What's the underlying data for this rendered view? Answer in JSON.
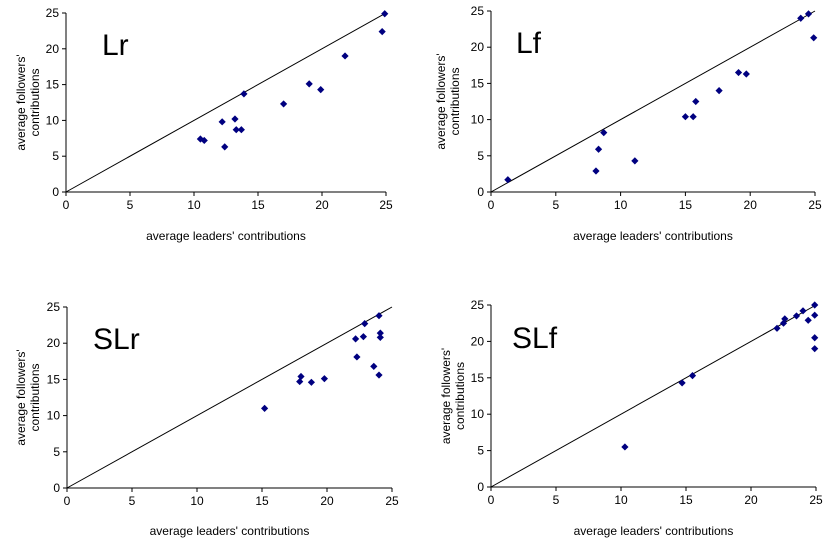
{
  "chart_data": [
    {
      "type": "scatter",
      "panel_label": "Lr",
      "xlabel": "average leaders' contributions",
      "ylabel_lines": [
        "average followers'",
        "contributions"
      ],
      "xlim": [
        0,
        25
      ],
      "ylim": [
        0,
        25
      ],
      "xticks": [
        0,
        5,
        10,
        15,
        20,
        25
      ],
      "yticks": [
        0,
        5,
        10,
        15,
        20,
        25
      ],
      "reference_line": "y = x",
      "marker_color": "#000080",
      "points": [
        {
          "x": 10.5,
          "y": 7.4
        },
        {
          "x": 10.8,
          "y": 7.2
        },
        {
          "x": 12.2,
          "y": 9.8
        },
        {
          "x": 12.4,
          "y": 6.3
        },
        {
          "x": 13.2,
          "y": 10.2
        },
        {
          "x": 13.3,
          "y": 8.7
        },
        {
          "x": 13.7,
          "y": 8.7
        },
        {
          "x": 13.9,
          "y": 13.7
        },
        {
          "x": 17.0,
          "y": 12.3
        },
        {
          "x": 19.0,
          "y": 15.1
        },
        {
          "x": 19.9,
          "y": 14.3
        },
        {
          "x": 21.8,
          "y": 19.0
        },
        {
          "x": 24.7,
          "y": 22.4
        },
        {
          "x": 24.9,
          "y": 24.9
        }
      ]
    },
    {
      "type": "scatter",
      "panel_label": "Lf",
      "xlabel": "average leaders' contributions",
      "ylabel_lines": [
        "average followers'",
        "contributions"
      ],
      "xlim": [
        0,
        25
      ],
      "ylim": [
        0,
        25
      ],
      "xticks": [
        0,
        5,
        10,
        15,
        20,
        25
      ],
      "yticks": [
        0,
        5,
        10,
        15,
        20,
        25
      ],
      "reference_line": "y = x",
      "marker_color": "#000080",
      "points": [
        {
          "x": 1.3,
          "y": 1.7
        },
        {
          "x": 8.1,
          "y": 2.9
        },
        {
          "x": 8.3,
          "y": 5.9
        },
        {
          "x": 8.7,
          "y": 8.2
        },
        {
          "x": 11.1,
          "y": 4.3
        },
        {
          "x": 15.0,
          "y": 10.4
        },
        {
          "x": 15.6,
          "y": 10.4
        },
        {
          "x": 15.8,
          "y": 12.5
        },
        {
          "x": 17.6,
          "y": 14.0
        },
        {
          "x": 19.1,
          "y": 16.5
        },
        {
          "x": 19.7,
          "y": 16.3
        },
        {
          "x": 23.9,
          "y": 24.0
        },
        {
          "x": 24.5,
          "y": 24.6
        },
        {
          "x": 24.9,
          "y": 21.3
        }
      ]
    },
    {
      "type": "scatter",
      "panel_label": "SLr",
      "xlabel": "average leaders' contributions",
      "ylabel_lines": [
        "average followers'",
        "contributions"
      ],
      "xlim": [
        0,
        25
      ],
      "ylim": [
        0,
        25
      ],
      "xticks": [
        0,
        5,
        10,
        15,
        20,
        25
      ],
      "yticks": [
        0,
        5,
        10,
        15,
        20,
        25
      ],
      "reference_line": "y = x",
      "marker_color": "#000080",
      "points": [
        {
          "x": 15.2,
          "y": 11.0
        },
        {
          "x": 17.9,
          "y": 14.7
        },
        {
          "x": 18.0,
          "y": 15.4
        },
        {
          "x": 18.8,
          "y": 14.6
        },
        {
          "x": 19.8,
          "y": 15.1
        },
        {
          "x": 22.2,
          "y": 20.6
        },
        {
          "x": 22.3,
          "y": 18.1
        },
        {
          "x": 22.8,
          "y": 20.9
        },
        {
          "x": 22.9,
          "y": 22.7
        },
        {
          "x": 23.6,
          "y": 16.8
        },
        {
          "x": 24.0,
          "y": 15.6
        },
        {
          "x": 24.0,
          "y": 23.8
        },
        {
          "x": 24.1,
          "y": 20.8
        },
        {
          "x": 24.1,
          "y": 21.4
        }
      ]
    },
    {
      "type": "scatter",
      "panel_label": "SLf",
      "xlabel": "average leaders' contributions",
      "ylabel_lines": [
        "average followers'",
        "contributions"
      ],
      "xlim": [
        0,
        25
      ],
      "ylim": [
        0,
        25
      ],
      "xticks": [
        0,
        5,
        10,
        15,
        20,
        25
      ],
      "yticks": [
        0,
        5,
        10,
        15,
        20,
        25
      ],
      "reference_line": "y = x",
      "marker_color": "#000080",
      "points": [
        {
          "x": 10.3,
          "y": 5.5
        },
        {
          "x": 14.7,
          "y": 14.3
        },
        {
          "x": 15.5,
          "y": 15.3
        },
        {
          "x": 22.0,
          "y": 21.8
        },
        {
          "x": 22.5,
          "y": 22.5
        },
        {
          "x": 22.6,
          "y": 23.1
        },
        {
          "x": 23.5,
          "y": 23.5
        },
        {
          "x": 24.0,
          "y": 24.2
        },
        {
          "x": 24.4,
          "y": 22.9
        },
        {
          "x": 24.9,
          "y": 25.0
        },
        {
          "x": 24.9,
          "y": 23.6
        },
        {
          "x": 24.9,
          "y": 20.5
        },
        {
          "x": 24.9,
          "y": 19.0
        }
      ]
    }
  ]
}
